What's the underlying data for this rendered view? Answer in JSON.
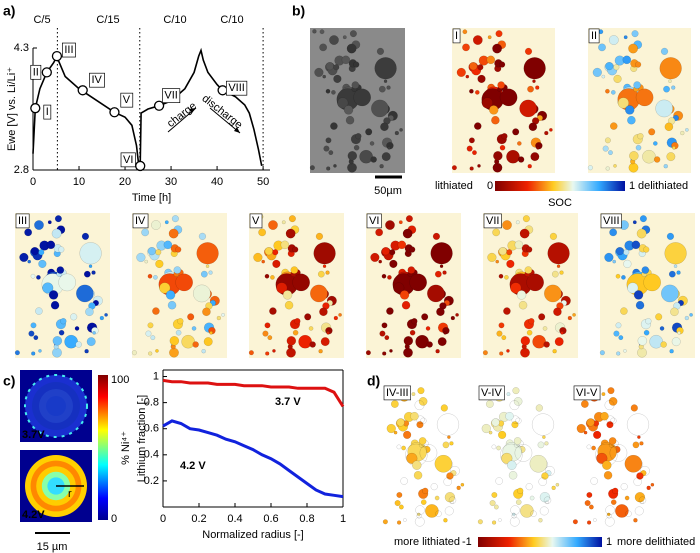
{
  "panel_labels": [
    "a)",
    "b)",
    "c)",
    "d)"
  ],
  "chart_data": [
    {
      "type": "line",
      "xlabel": "Time [h]",
      "ylabel": "Ewe [V] vs. Li/Li⁺",
      "rates": [
        "C/5",
        "C/15",
        "C/10",
        "C/10"
      ],
      "dividers": [
        5.3,
        23.2,
        50
      ],
      "xlim": [
        0,
        51.5
      ],
      "ylim": [
        2.8,
        4.3
      ],
      "xticks": [
        0,
        10,
        20,
        30,
        40,
        50
      ],
      "yticks": [
        2.8,
        4.3
      ],
      "x": [
        0,
        0.5,
        1.5,
        3,
        4.5,
        5.2,
        5.5,
        7,
        10,
        14,
        17.7,
        20,
        21.5,
        22.5,
        23,
        23.3,
        23.5,
        25,
        27.4,
        30,
        33,
        35,
        36,
        36.5,
        37,
        38,
        40,
        41.2,
        44,
        46,
        47,
        48,
        49,
        49.7
      ],
      "series": [
        {
          "color": "#000000",
          "values": [
            3.0,
            3.56,
            3.8,
            4.0,
            4.12,
            4.2,
            4.15,
            3.95,
            3.8,
            3.65,
            3.51,
            3.45,
            3.35,
            3.1,
            2.85,
            2.85,
            3.5,
            3.55,
            3.59,
            3.65,
            3.8,
            4.0,
            4.2,
            4.27,
            4.15,
            4.0,
            3.85,
            3.78,
            3.7,
            3.6,
            3.5,
            3.3,
            3.05,
            2.85
          ]
        }
      ],
      "points": {
        "labels": [
          "I",
          "II",
          "III",
          "IV",
          "V",
          "VI",
          "VII",
          "VIII"
        ],
        "x": [
          0.5,
          3,
          5.2,
          10.8,
          17.7,
          23.3,
          27.4,
          41.2
        ],
        "y": [
          3.56,
          4.0,
          4.2,
          3.78,
          3.51,
          2.85,
          3.59,
          3.78
        ]
      },
      "annotations": [
        "charge",
        "discharge"
      ]
    },
    {
      "type": "line",
      "xlabel": "Normalized radius [-]",
      "ylabel": "Lithium fraction [-]",
      "xlim": [
        0,
        1
      ],
      "ylim": [
        0,
        1.05
      ],
      "xticks": [
        0,
        0.2,
        0.4,
        0.6,
        0.8,
        1
      ],
      "yticks": [
        0.2,
        0.4,
        0.6,
        0.8,
        1
      ],
      "x": [
        0,
        0.05,
        0.1,
        0.15,
        0.2,
        0.25,
        0.3,
        0.35,
        0.4,
        0.45,
        0.5,
        0.55,
        0.6,
        0.65,
        0.7,
        0.75,
        0.8,
        0.85,
        0.9,
        0.95,
        1
      ],
      "series": [
        {
          "name": "3.7 V",
          "color": "#dd1111",
          "values": [
            0.97,
            0.96,
            0.96,
            0.95,
            0.95,
            0.95,
            0.94,
            0.94,
            0.94,
            0.93,
            0.93,
            0.93,
            0.92,
            0.92,
            0.92,
            0.91,
            0.91,
            0.91,
            0.91,
            0.88,
            0.77
          ]
        },
        {
          "name": "4.2 V",
          "color": "#1122dd",
          "values": [
            0.62,
            0.66,
            0.64,
            0.6,
            0.59,
            0.57,
            0.55,
            0.52,
            0.5,
            0.47,
            0.44,
            0.4,
            0.37,
            0.33,
            0.28,
            0.23,
            0.18,
            0.13,
            0.1,
            0.09,
            0.08
          ]
        }
      ]
    }
  ],
  "b": {
    "images": [
      "I",
      "II",
      "III",
      "IV",
      "V",
      "VI",
      "VII",
      "VIII"
    ],
    "scalebar": "50µm",
    "colorbar": {
      "left": "lithiated",
      "min": 0,
      "max": 1,
      "right": "delithiated",
      "title": "SOC"
    }
  },
  "c": {
    "images": [
      "3.7V",
      "4.2V"
    ],
    "radius_marker": "r",
    "scalebar": "15 µm",
    "colorbar": {
      "max": 100,
      "min": 0,
      "title": "% Ni⁴⁺"
    }
  },
  "d": {
    "images": [
      "IV-III",
      "V-IV",
      "VI-V"
    ],
    "colorbar": {
      "left": "more lithiated",
      "min": -1,
      "max": 1,
      "right": "more delithiated"
    }
  }
}
